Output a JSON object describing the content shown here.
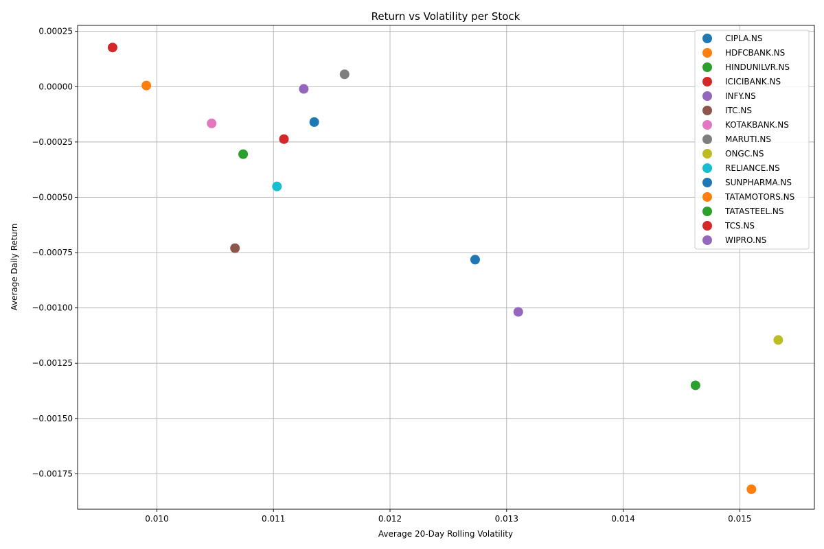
{
  "chart_data": {
    "type": "scatter",
    "title": "Return vs Volatility per Stock",
    "xlabel": "Average 20-Day Rolling Volatility",
    "ylabel": "Average Daily Return",
    "xlim": [
      0.00932,
      0.01564
    ],
    "ylim": [
      -0.00191,
      0.000277
    ],
    "xticks": [
      0.01,
      0.011,
      0.012,
      0.013,
      0.014,
      0.015
    ],
    "xtick_labels": [
      "0.010",
      "0.011",
      "0.012",
      "0.013",
      "0.014",
      "0.015"
    ],
    "yticks": [
      0.00025,
      0.0,
      -0.00025,
      -0.0005,
      -0.00075,
      -0.001,
      -0.00125,
      -0.0015,
      -0.00175
    ],
    "ytick_labels": [
      "0.00025",
      "0.00000",
      "−0.00025",
      "−0.00050",
      "−0.00075",
      "−0.00100",
      "−0.00125",
      "−0.00150",
      "−0.00175"
    ],
    "grid": true,
    "legend_position": "top-right",
    "series": [
      {
        "name": "CIPLA.NS",
        "color": "#1f77b4",
        "x": 0.01135,
        "y": -0.00016
      },
      {
        "name": "HDFCBANK.NS",
        "color": "#ff7f0e",
        "x": 0.00991,
        "y": 5e-06
      },
      {
        "name": "HINDUNILVR.NS",
        "color": "#2ca02c",
        "x": 0.01074,
        "y": -0.000305
      },
      {
        "name": "ICICIBANK.NS",
        "color": "#d62728",
        "x": 0.01109,
        "y": -0.000237
      },
      {
        "name": "INFY.NS",
        "color": "#9467bd",
        "x": 0.01126,
        "y": -1e-05
      },
      {
        "name": "ITC.NS",
        "color": "#8c564b",
        "x": 0.01067,
        "y": -0.00073
      },
      {
        "name": "KOTAKBANK.NS",
        "color": "#e377c2",
        "x": 0.01047,
        "y": -0.000166
      },
      {
        "name": "MARUTI.NS",
        "color": "#7f7f7f",
        "x": 0.01161,
        "y": 5.6e-05
      },
      {
        "name": "ONGC.NS",
        "color": "#bcbd22",
        "x": 0.01533,
        "y": -0.001145
      },
      {
        "name": "RELIANCE.NS",
        "color": "#17becf",
        "x": 0.01103,
        "y": -0.000451
      },
      {
        "name": "SUNPHARMA.NS",
        "color": "#1f77b4",
        "x": 0.01273,
        "y": -0.000782
      },
      {
        "name": "TATAMOTORS.NS",
        "color": "#ff7f0e",
        "x": 0.0151,
        "y": -0.00182
      },
      {
        "name": "TATASTEEL.NS",
        "color": "#2ca02c",
        "x": 0.01462,
        "y": -0.00135
      },
      {
        "name": "TCS.NS",
        "color": "#d62728",
        "x": 0.00962,
        "y": 0.000177
      },
      {
        "name": "WIPRO.NS",
        "color": "#9467bd",
        "x": 0.0131,
        "y": -0.001018
      }
    ]
  }
}
